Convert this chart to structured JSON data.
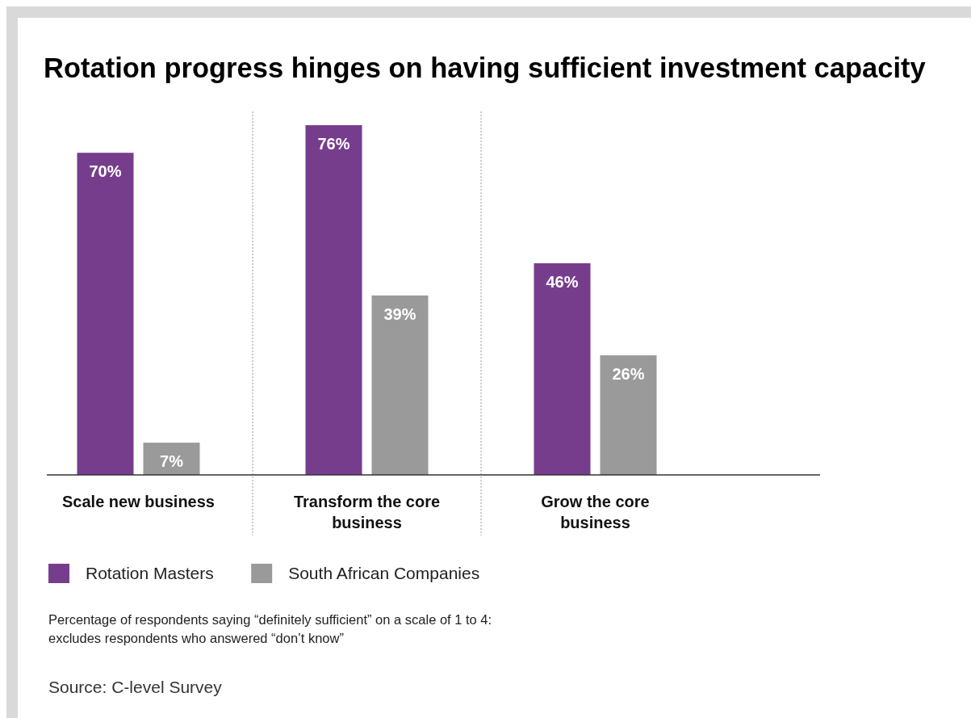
{
  "chart_data": {
    "type": "bar",
    "title": "Rotation progress hinges on having sufficient investment capacity",
    "categories": [
      "Scale new business",
      "Transform the core business",
      "Grow the core business"
    ],
    "series": [
      {
        "name": "Rotation Masters",
        "color": "#773d8d",
        "values": [
          70,
          76,
          46
        ],
        "value_labels": [
          "70%",
          "76%",
          "46%"
        ]
      },
      {
        "name": "South African Companies",
        "color": "#9a9a9a",
        "values": [
          7,
          39,
          26
        ],
        "value_labels": [
          "7%",
          "39%",
          "26%"
        ]
      }
    ],
    "legend": "bottom left",
    "annotations": [
      "Percentage of respondents saying “definitely sufficient” on a scale of 1 to 4: excludes respondents who answered “don’t know”",
      "Source: C-level Survey"
    ]
  }
}
